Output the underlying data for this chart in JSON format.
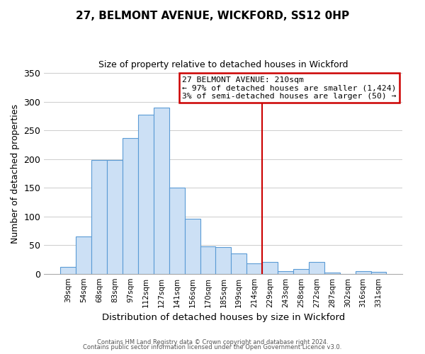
{
  "title": "27, BELMONT AVENUE, WICKFORD, SS12 0HP",
  "subtitle": "Size of property relative to detached houses in Wickford",
  "xlabel": "Distribution of detached houses by size in Wickford",
  "ylabel": "Number of detached properties",
  "bar_labels": [
    "39sqm",
    "54sqm",
    "68sqm",
    "83sqm",
    "97sqm",
    "112sqm",
    "127sqm",
    "141sqm",
    "156sqm",
    "170sqm",
    "185sqm",
    "199sqm",
    "214sqm",
    "229sqm",
    "243sqm",
    "258sqm",
    "272sqm",
    "287sqm",
    "302sqm",
    "316sqm",
    "331sqm"
  ],
  "bar_values": [
    12,
    65,
    198,
    198,
    237,
    278,
    290,
    150,
    96,
    48,
    47,
    35,
    18,
    20,
    5,
    8,
    20,
    2,
    0,
    5,
    3
  ],
  "bar_color": "#cce0f5",
  "bar_edgecolor": "#5b9bd5",
  "vline_index": 12,
  "vline_color": "#cc0000",
  "ylim": [
    0,
    350
  ],
  "yticks": [
    0,
    50,
    100,
    150,
    200,
    250,
    300,
    350
  ],
  "annotation_title": "27 BELMONT AVENUE: 210sqm",
  "annotation_line1": "← 97% of detached houses are smaller (1,424)",
  "annotation_line2": "3% of semi-detached houses are larger (50) →",
  "annotation_box_color": "#ffffff",
  "annotation_box_edgecolor": "#cc0000",
  "footer_line1": "Contains HM Land Registry data © Crown copyright and database right 2024.",
  "footer_line2": "Contains public sector information licensed under the Open Government Licence v3.0.",
  "background_color": "#ffffff",
  "grid_color": "#cccccc"
}
